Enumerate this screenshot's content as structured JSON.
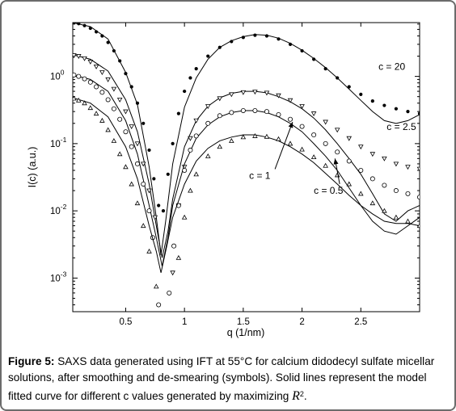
{
  "chart_data": {
    "type": "scatter",
    "xlabel": "q (1/nm)",
    "ylabel": "I(c) (a.u.)",
    "xlim": [
      0.05,
      3.0
    ],
    "ylim_log10": [
      -3.5,
      0.8
    ],
    "y_scale": "log",
    "x_ticks": [
      0.5,
      1,
      1.5,
      2,
      2.5
    ],
    "x_tick_labels": [
      "0.5",
      "1",
      "1.5",
      "2",
      "2.5"
    ],
    "y_ticks": [
      {
        "base": "10",
        "exp": "0",
        "value": 1
      },
      {
        "base": "10",
        "exp": "-1",
        "value": 0.1
      },
      {
        "base": "10",
        "exp": "-2",
        "value": 0.01
      },
      {
        "base": "10",
        "exp": "-3",
        "value": 0.001
      }
    ],
    "grid": false,
    "series": [
      {
        "name": "c = 20",
        "marker": "dot",
        "fit_line": {
          "x": [
            0.05,
            0.2,
            0.35,
            0.5,
            0.6,
            0.7,
            0.76,
            0.8,
            0.84,
            0.9,
            1.0,
            1.1,
            1.2,
            1.3,
            1.4,
            1.5,
            1.6,
            1.7,
            1.8,
            1.9,
            2.0,
            2.1,
            2.2,
            2.3,
            2.4,
            2.5,
            2.6,
            2.7,
            2.8,
            2.9,
            3.0
          ],
          "y": [
            6.3,
            5.5,
            3.6,
            1.15,
            0.38,
            0.045,
            0.008,
            0.0022,
            0.007,
            0.05,
            0.35,
            0.95,
            1.8,
            2.7,
            3.4,
            3.9,
            4.2,
            4.1,
            3.7,
            3.1,
            2.45,
            1.85,
            1.35,
            0.95,
            0.65,
            0.44,
            0.3,
            0.22,
            0.2,
            0.22,
            0.27
          ]
        },
        "points": {
          "x": [
            0.06,
            0.1,
            0.15,
            0.2,
            0.25,
            0.3,
            0.35,
            0.4,
            0.45,
            0.5,
            0.55,
            0.6,
            0.65,
            0.7,
            0.74,
            0.78,
            0.82,
            0.86,
            0.9,
            0.95,
            1.0,
            1.05,
            1.1,
            1.2,
            1.3,
            1.4,
            1.5,
            1.6,
            1.7,
            1.8,
            1.9,
            2.0,
            2.1,
            2.2,
            2.3,
            2.4,
            2.5,
            2.6,
            2.7,
            2.8,
            2.9,
            3.0
          ],
          "y": [
            6.3,
            6.1,
            5.7,
            5.2,
            4.6,
            4.0,
            3.2,
            2.4,
            1.7,
            1.1,
            0.7,
            0.4,
            0.2,
            0.08,
            0.03,
            0.012,
            0.01,
            0.035,
            0.1,
            0.28,
            0.6,
            0.95,
            1.3,
            2.0,
            2.7,
            3.3,
            3.8,
            4.1,
            4.0,
            3.6,
            3.0,
            2.4,
            1.8,
            1.3,
            0.95,
            0.7,
            0.54,
            0.43,
            0.37,
            0.33,
            0.3,
            0.28
          ]
        }
      },
      {
        "name": "c = 2.5",
        "marker": "triangle-down",
        "fit_line": {
          "x": [
            0.05,
            0.2,
            0.35,
            0.5,
            0.6,
            0.7,
            0.76,
            0.81,
            0.86,
            0.9,
            1.0,
            1.1,
            1.2,
            1.3,
            1.4,
            1.5,
            1.6,
            1.7,
            1.8,
            1.9,
            2.0,
            2.1,
            2.2,
            2.3,
            2.4,
            2.5,
            2.6,
            2.7,
            2.8,
            2.9,
            3.0
          ],
          "y": [
            2.1,
            1.8,
            1.2,
            0.45,
            0.15,
            0.025,
            0.006,
            0.002,
            0.005,
            0.015,
            0.09,
            0.22,
            0.36,
            0.48,
            0.56,
            0.6,
            0.6,
            0.57,
            0.5,
            0.42,
            0.33,
            0.24,
            0.16,
            0.1,
            0.06,
            0.035,
            0.018,
            0.009,
            0.007,
            0.01,
            0.012
          ]
        },
        "points": {
          "x": [
            0.06,
            0.1,
            0.15,
            0.2,
            0.25,
            0.3,
            0.35,
            0.4,
            0.45,
            0.5,
            0.55,
            0.6,
            0.65,
            0.7,
            0.75,
            0.9,
            0.95,
            1.0,
            1.05,
            1.1,
            1.2,
            1.3,
            1.4,
            1.5,
            1.6,
            1.7,
            1.8,
            1.9,
            2.0,
            2.1,
            2.2,
            2.3,
            2.4,
            2.5,
            2.6,
            2.7,
            2.8,
            2.9,
            3.0
          ],
          "y": [
            2.05,
            2.0,
            1.85,
            1.65,
            1.4,
            1.15,
            0.9,
            0.65,
            0.45,
            0.3,
            0.18,
            0.1,
            0.05,
            0.02,
            0.008,
            0.0012,
            0.012,
            0.045,
            0.12,
            0.22,
            0.36,
            0.47,
            0.54,
            0.58,
            0.59,
            0.57,
            0.52,
            0.44,
            0.36,
            0.28,
            0.21,
            0.16,
            0.12,
            0.09,
            0.07,
            0.06,
            0.05,
            0.045,
            0.042
          ]
        }
      },
      {
        "name": "c = 1",
        "marker": "circle",
        "fit_line": {
          "x": [
            0.05,
            0.2,
            0.35,
            0.5,
            0.6,
            0.7,
            0.76,
            0.81,
            0.86,
            0.9,
            1.0,
            1.1,
            1.2,
            1.3,
            1.4,
            1.5,
            1.6,
            1.7,
            1.8,
            1.9,
            2.0,
            2.1,
            2.2,
            2.3,
            2.4,
            2.5,
            2.6,
            2.7,
            2.8,
            2.9,
            3.0
          ],
          "y": [
            1.05,
            0.9,
            0.6,
            0.22,
            0.07,
            0.012,
            0.004,
            0.0015,
            0.004,
            0.012,
            0.05,
            0.12,
            0.19,
            0.25,
            0.29,
            0.31,
            0.31,
            0.29,
            0.25,
            0.2,
            0.15,
            0.1,
            0.065,
            0.04,
            0.022,
            0.012,
            0.007,
            0.005,
            0.0045,
            0.006,
            0.008
          ]
        },
        "points": {
          "x": [
            0.06,
            0.1,
            0.15,
            0.2,
            0.25,
            0.3,
            0.35,
            0.4,
            0.45,
            0.5,
            0.55,
            0.6,
            0.65,
            0.7,
            0.73,
            0.78,
            0.87,
            0.91,
            0.95,
            1.0,
            1.05,
            1.1,
            1.2,
            1.3,
            1.4,
            1.5,
            1.6,
            1.7,
            1.8,
            1.9,
            2.0,
            2.1,
            2.2,
            2.3,
            2.4,
            2.5,
            2.6,
            2.7,
            2.8,
            2.9,
            3.0
          ],
          "y": [
            1.05,
            1.0,
            0.92,
            0.82,
            0.7,
            0.58,
            0.45,
            0.33,
            0.23,
            0.15,
            0.09,
            0.05,
            0.025,
            0.01,
            0.004,
            0.0004,
            0.0006,
            0.003,
            0.012,
            0.04,
            0.08,
            0.13,
            0.2,
            0.26,
            0.29,
            0.31,
            0.31,
            0.3,
            0.27,
            0.23,
            0.18,
            0.135,
            0.1,
            0.075,
            0.055,
            0.04,
            0.03,
            0.024,
            0.02,
            0.018,
            0.016
          ]
        }
      },
      {
        "name": "c = 0.5",
        "marker": "triangle-up",
        "fit_line": {
          "x": [
            0.05,
            0.2,
            0.35,
            0.5,
            0.6,
            0.7,
            0.76,
            0.8,
            0.85,
            0.9,
            1.0,
            1.1,
            1.2,
            1.3,
            1.4,
            1.5,
            1.6,
            1.7,
            1.8,
            1.9,
            2.0,
            2.1,
            2.2,
            2.3,
            2.4,
            2.5,
            2.6,
            2.7,
            2.8,
            2.9,
            3.0
          ],
          "y": [
            0.48,
            0.4,
            0.25,
            0.09,
            0.03,
            0.006,
            0.0025,
            0.0012,
            0.003,
            0.008,
            0.025,
            0.055,
            0.085,
            0.11,
            0.125,
            0.135,
            0.135,
            0.125,
            0.11,
            0.09,
            0.07,
            0.052,
            0.036,
            0.025,
            0.017,
            0.012,
            0.009,
            0.007,
            0.0065,
            0.0065,
            0.006
          ]
        },
        "points": {
          "x": [
            0.06,
            0.1,
            0.15,
            0.2,
            0.25,
            0.3,
            0.35,
            0.4,
            0.45,
            0.5,
            0.55,
            0.6,
            0.65,
            0.7,
            0.76,
            0.95,
            1.0,
            1.05,
            1.1,
            1.2,
            1.3,
            1.4,
            1.5,
            1.6,
            1.7,
            1.8,
            1.9,
            2.0,
            2.1,
            2.2,
            2.3,
            2.4,
            2.5,
            2.6,
            2.7,
            2.8,
            2.9,
            3.0
          ],
          "y": [
            0.47,
            0.44,
            0.4,
            0.34,
            0.28,
            0.22,
            0.16,
            0.11,
            0.07,
            0.045,
            0.025,
            0.013,
            0.006,
            0.0025,
            0.00075,
            0.002,
            0.008,
            0.02,
            0.035,
            0.065,
            0.09,
            0.11,
            0.125,
            0.13,
            0.127,
            0.117,
            0.1,
            0.082,
            0.063,
            0.047,
            0.034,
            0.025,
            0.018,
            0.013,
            0.01,
            0.008,
            0.007,
            0.006
          ]
        }
      }
    ],
    "annotations": [
      {
        "text": "c = 20",
        "x": 2.65,
        "y": 1.25
      },
      {
        "text": "c = 2.5",
        "x": 2.72,
        "y": 0.16
      },
      {
        "text": "c = 1",
        "x": 1.55,
        "y": 0.03,
        "arrow_to": {
          "x": 1.92,
          "y": 0.21
        }
      },
      {
        "text": "c = 0.5",
        "x": 2.1,
        "y": 0.018,
        "arrow_to": {
          "x": 2.28,
          "y": 0.06
        }
      }
    ]
  },
  "caption": {
    "lead": "Figure 5:",
    "text": "SAXS data generated using IFT at 55°C for calcium didodecyl sulfate micellar solutions, after smoothing and de-smearing (symbols). Solid lines represent the model fitted curve for different c values generated by maximizing",
    "r2_symbol": "R",
    "r2_exp": "2",
    "end": "."
  }
}
